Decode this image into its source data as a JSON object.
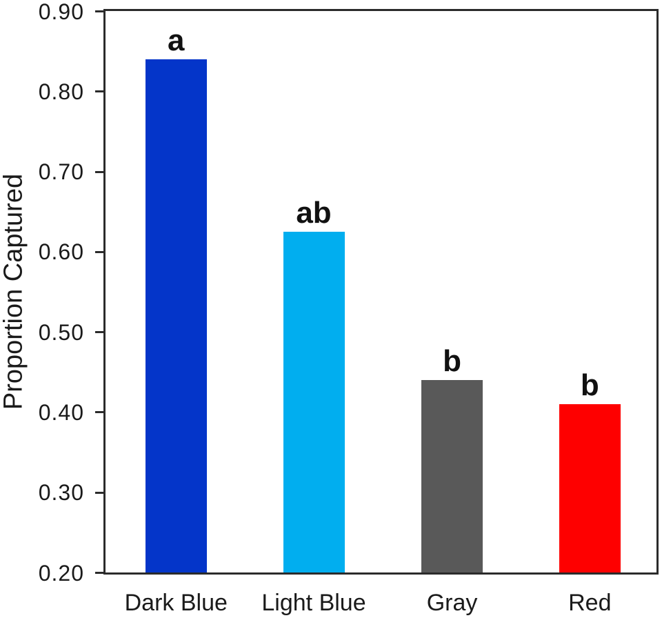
{
  "chart_data": {
    "type": "bar",
    "title": "",
    "xlabel": "",
    "ylabel": "Proportion Captured",
    "categories": [
      "Dark Blue",
      "Light Blue",
      "Gray",
      "Red"
    ],
    "values": [
      0.84,
      0.625,
      0.44,
      0.41
    ],
    "bar_colors": [
      "#0435C9",
      "#01AEEF",
      "#595959",
      "#FE0000"
    ],
    "significance_letters": [
      "a",
      "ab",
      "b",
      "b"
    ],
    "ylim": [
      0.2,
      0.9
    ],
    "ytick_step": 0.1,
    "ytick_labels": [
      "0.90",
      "0.80",
      "0.70",
      "0.60",
      "0.50",
      "0.40",
      "0.30",
      "0.20"
    ],
    "grid": false,
    "legend": null,
    "frame_color": "#2b2b2b",
    "text_color": "#1a1a1a"
  }
}
